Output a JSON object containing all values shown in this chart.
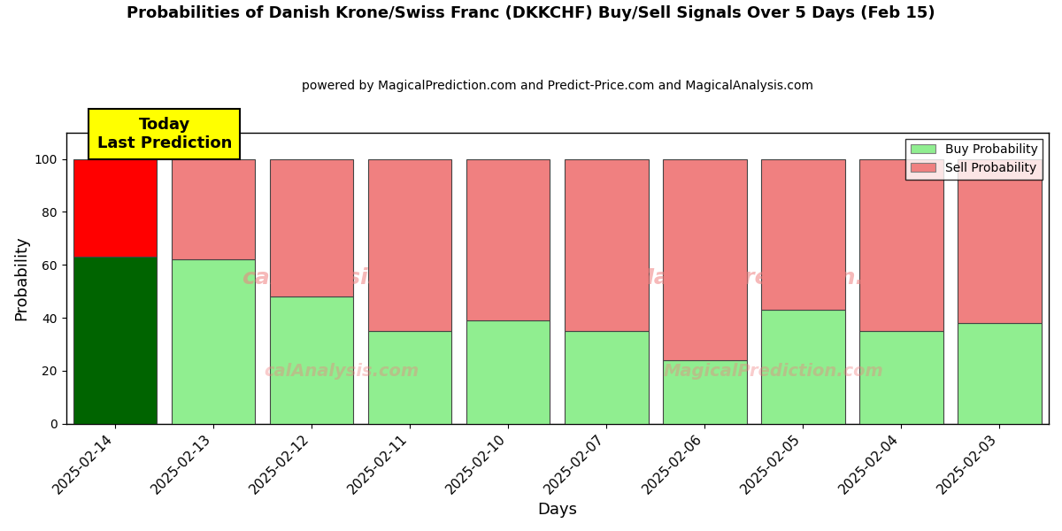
{
  "title": "Probabilities of Danish Krone/Swiss Franc (DKKCHF) Buy/Sell Signals Over 5 Days (Feb 15)",
  "subtitle": "powered by MagicalPrediction.com and Predict-Price.com and MagicalAnalysis.com",
  "xlabel": "Days",
  "ylabel": "Probability",
  "categories": [
    "2025-02-14",
    "2025-02-13",
    "2025-02-12",
    "2025-02-11",
    "2025-02-10",
    "2025-02-07",
    "2025-02-06",
    "2025-02-05",
    "2025-02-04",
    "2025-02-03"
  ],
  "buy_values": [
    63,
    62,
    48,
    35,
    39,
    35,
    24,
    43,
    35,
    38
  ],
  "sell_values": [
    37,
    38,
    52,
    65,
    61,
    65,
    76,
    57,
    65,
    62
  ],
  "today_buy_color": "#006400",
  "today_sell_color": "#FF0000",
  "other_buy_color": "#90EE90",
  "other_sell_color": "#F08080",
  "bar_edge_color": "#444444",
  "ylim": [
    0,
    110
  ],
  "dashed_line_y": 110,
  "watermark_lines": [
    "calAnalysis.com    MagicalPrediction.com",
    "calAnalysis.com    MagicalPrediction.com"
  ],
  "annotation_text": "Today\nLast Prediction",
  "annotation_bg": "#FFFF00",
  "legend_buy_label": "Buy Probability",
  "legend_sell_label": "Sell Probability",
  "figsize": [
    12,
    6
  ],
  "dpi": 100,
  "bg_color": "#f0f0f0"
}
